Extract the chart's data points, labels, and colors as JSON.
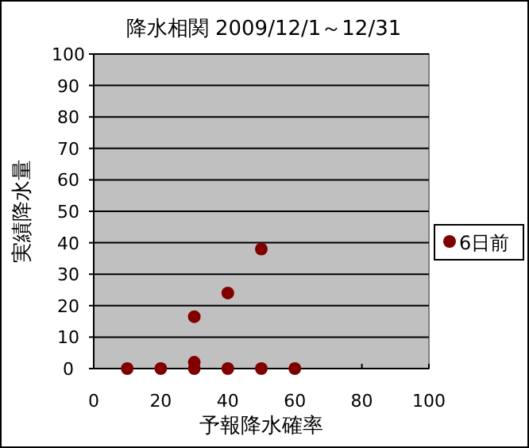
{
  "chart_data": {
    "type": "scatter",
    "title": "降水相関 2009/12/1～12/31",
    "xlabel": "予報降水確率",
    "ylabel": "実績降水量",
    "series": [
      {
        "name": "6日前",
        "color": "#800000",
        "x": [
          10,
          20,
          30,
          30,
          30,
          40,
          40,
          50,
          50,
          60
        ],
        "values": [
          0,
          0,
          0,
          2,
          16.5,
          0,
          24,
          0,
          38,
          0
        ]
      }
    ],
    "xlim": [
      0,
      100
    ],
    "ylim": [
      0,
      100
    ],
    "xticks": [
      0,
      20,
      40,
      60,
      80,
      100
    ],
    "yticks": [
      0,
      10,
      20,
      30,
      40,
      50,
      60,
      70,
      80,
      90,
      100
    ],
    "grid": "y",
    "legend": "right",
    "marker": "circle"
  }
}
